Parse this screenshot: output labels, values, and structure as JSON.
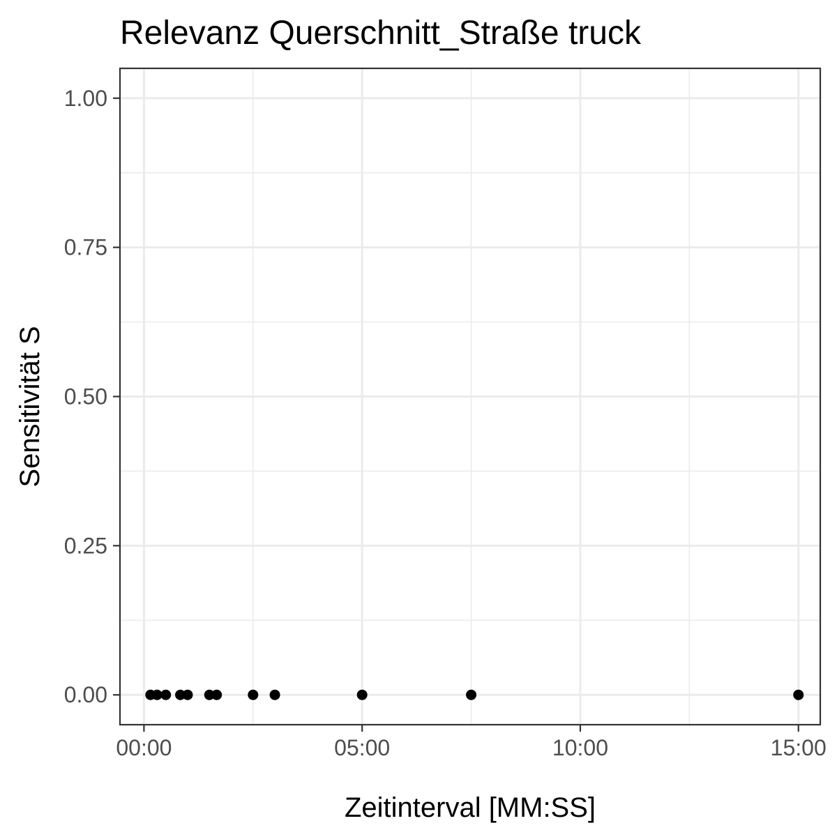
{
  "chart_data": {
    "type": "scatter",
    "title": "Relevanz Querschnitt_Straße truck",
    "xlabel": "Zeitinterval [MM:SS]",
    "ylabel": "Sensitivität S",
    "x_tick_labels": [
      "00:00",
      "05:00",
      "10:00",
      "15:00"
    ],
    "y_tick_labels": [
      "0.00",
      "0.25",
      "0.50",
      "0.75",
      "1.00"
    ],
    "x_ticks_seconds": [
      0,
      300,
      600,
      900
    ],
    "y_ticks": [
      0,
      0.25,
      0.5,
      0.75,
      1.0
    ],
    "xlim_seconds": [
      -33,
      930
    ],
    "ylim": [
      -0.05,
      1.05
    ],
    "grid": true,
    "legend": "none",
    "point_color": "#000000",
    "series": [
      {
        "x": [
          "00:09",
          "00:18",
          "00:30",
          "00:50",
          "01:00",
          "01:30",
          "01:40",
          "02:30",
          "03:00",
          "05:00",
          "07:30",
          "15:00"
        ],
        "x_seconds": [
          9,
          18,
          30,
          50,
          60,
          90,
          100,
          150,
          180,
          300,
          450,
          900
        ],
        "y": [
          0,
          0,
          0,
          0,
          0,
          0,
          0,
          0,
          0,
          0,
          0,
          0
        ]
      }
    ]
  }
}
